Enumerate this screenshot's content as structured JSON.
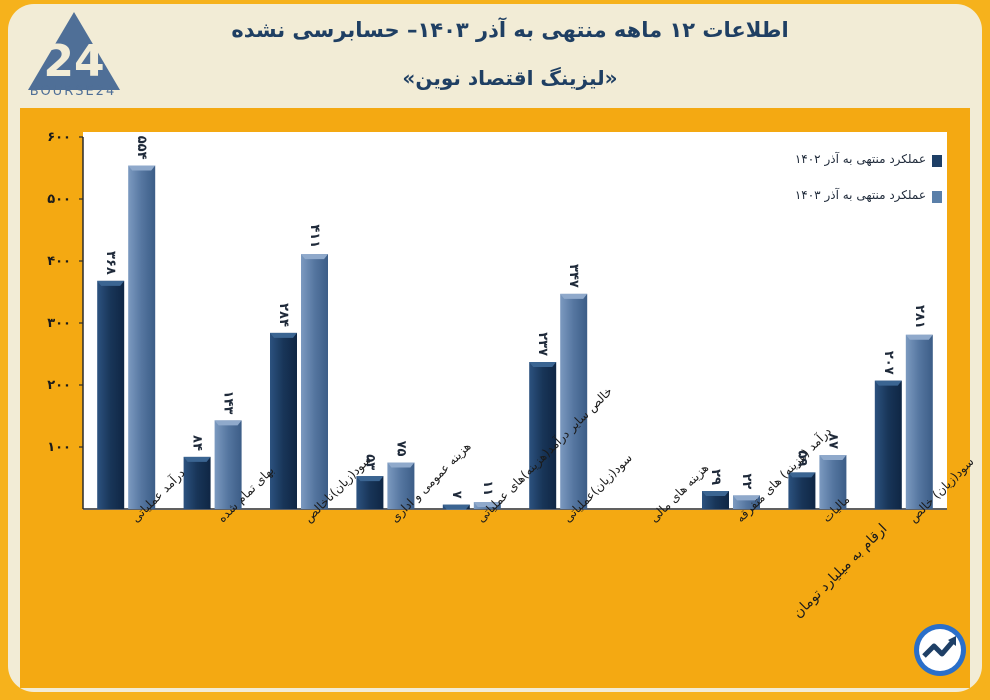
{
  "header": {
    "title": "اطلاعات ۱۲ ماهه منتهی به آذر ۱۴۰۳– حسابرسی نشده",
    "subtitle": "«لیزینگ اقتصاد نوین»",
    "logo_text": "BOURSE24"
  },
  "note": "ارقام به میلیارد تومان",
  "colors": {
    "series_1402": "#1e3f66",
    "series_1403": "#5a7fa9",
    "frame": "#f4a912"
  },
  "chart_data": {
    "type": "bar",
    "title": "اطلاعات ۱۲ ماهه منتهی به آذر ۱۴۰۳– حسابرسی نشده",
    "xlabel": "",
    "ylabel": "",
    "ylim": [
      0,
      600
    ],
    "yticks": [
      "۱۰۰",
      "۲۰۰",
      "۳۰۰",
      "۴۰۰",
      "۵۰۰",
      "۶۰۰"
    ],
    "categories": [
      "درآمد عملیاتی",
      "بهای تمام شده",
      "سود(زیان)ناخالص",
      "هزینه عمومی و اداری",
      "خالص سایر درآمد(هزینه)های عملیاتی",
      "سود(زیان)عملیاتی",
      "هزینه های مالی",
      "درآمد (هزینه) های متفرقه",
      "مالیات",
      "سود(زیان) خالص"
    ],
    "series": [
      {
        "name": "عملکرد منتهی به آذر ۱۴۰۲",
        "values": [
          368,
          84,
          284,
          53,
          7,
          237,
          0,
          29,
          59,
          207
        ],
        "labels": [
          "۳۶۸",
          "۸۴",
          "۲۸۴",
          "۵۳",
          "۷",
          "۲۳۷",
          "",
          "۲۹",
          "۵۹",
          "۲۰۷"
        ]
      },
      {
        "name": "عملکرد منتهی به آذر ۱۴۰۳",
        "values": [
          554,
          143,
          411,
          75,
          11,
          347,
          0,
          22,
          87,
          281
        ],
        "labels": [
          "۵۵۴",
          "۱۴۳",
          "۴۱۱",
          "۷۵",
          "۱۱",
          "۳۴۷",
          "",
          "۲۲",
          "۸۷",
          "۲۸۱"
        ]
      }
    ],
    "legend_position": "top-right",
    "grid": false
  }
}
